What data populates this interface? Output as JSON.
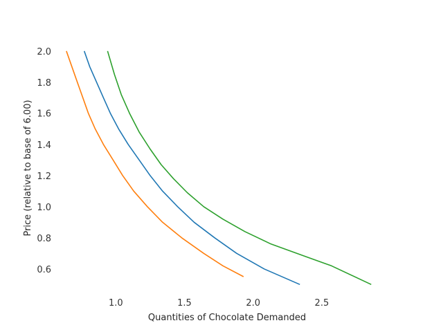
{
  "chart_data": {
    "type": "line",
    "title": "",
    "xlabel": "Quantities of Chocolate Demanded",
    "ylabel": "Price (relative to base of 6.00)",
    "xlim": [
      0.56,
      3.06
    ],
    "ylim": [
      0.43,
      2.07
    ],
    "grid": false,
    "x_ticks": [
      "1.0",
      "1.5",
      "2.0",
      "2.5"
    ],
    "x_tick_values": [
      1.0,
      1.5,
      2.0,
      2.5
    ],
    "y_ticks": [
      "0.6",
      "0.8",
      "1.0",
      "1.2",
      "1.4",
      "1.6",
      "1.8",
      "2.0"
    ],
    "y_tick_values": [
      0.6,
      0.8,
      1.0,
      1.2,
      1.4,
      1.6,
      1.8,
      2.0
    ],
    "series": [
      {
        "color": "#1f77b4",
        "x": [
          0.77,
          0.81,
          0.86,
          0.91,
          0.96,
          1.02,
          1.09,
          1.17,
          1.25,
          1.34,
          1.45,
          1.57,
          1.72,
          1.88,
          2.08,
          2.34
        ],
        "y": [
          2.0,
          1.9,
          1.8,
          1.7,
          1.6,
          1.5,
          1.4,
          1.3,
          1.2,
          1.1,
          1.0,
          0.9,
          0.8,
          0.7,
          0.6,
          0.5
        ]
      },
      {
        "color": "#ff7f0e",
        "x": [
          0.64,
          0.68,
          0.72,
          0.76,
          0.8,
          0.85,
          0.91,
          0.98,
          1.05,
          1.13,
          1.23,
          1.34,
          1.48,
          1.64,
          1.78,
          1.93
        ],
        "y": [
          2.0,
          1.9,
          1.8,
          1.7,
          1.6,
          1.5,
          1.4,
          1.3,
          1.2,
          1.1,
          1.0,
          0.9,
          0.8,
          0.7,
          0.62,
          0.55
        ]
      },
      {
        "color": "#2ca02c",
        "x": [
          0.94,
          0.99,
          1.04,
          1.1,
          1.17,
          1.25,
          1.33,
          1.42,
          1.52,
          1.64,
          1.78,
          1.94,
          2.13,
          2.38,
          2.57,
          2.86
        ],
        "y": [
          2.0,
          1.85,
          1.72,
          1.6,
          1.48,
          1.37,
          1.27,
          1.18,
          1.09,
          1.0,
          0.92,
          0.84,
          0.76,
          0.68,
          0.62,
          0.5
        ]
      }
    ]
  }
}
